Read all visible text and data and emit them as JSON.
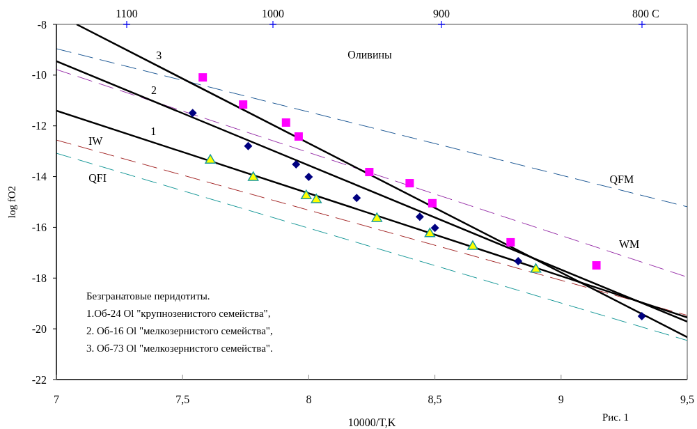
{
  "chart_data": {
    "type": "scatter",
    "xlabel": "10000/T,K",
    "ylabel": "log fO2",
    "xlim": [
      7,
      9.5
    ],
    "xticks": [
      7,
      {
        "value": 7.5,
        "label": "7,5"
      },
      8,
      {
        "value": 8.5,
        "label": "8,5"
      },
      9,
      {
        "value": 9.5,
        "label": "9,5"
      }
    ],
    "ylim": [
      -22,
      -8
    ],
    "yticks": [
      -22,
      -20,
      -18,
      -16,
      -14,
      -12,
      -10,
      -8
    ],
    "grid": false,
    "legend": false,
    "series": [
      {
        "name": "QFM",
        "type": "line",
        "color": "#1f5a96",
        "line_style": "dashed",
        "marker": "none",
        "x": [
          7,
          9.5
        ],
        "values": [
          -8.96,
          -15.19
        ]
      },
      {
        "name": "WM",
        "type": "line",
        "color": "#9933aa",
        "line_style": "dashed",
        "marker": "none",
        "x": [
          7,
          9.5
        ],
        "values": [
          -9.78,
          -17.96
        ]
      },
      {
        "name": "IW",
        "type": "line",
        "color": "#a52a2a",
        "line_style": "dashed",
        "marker": "none",
        "x": [
          7,
          9.5
        ],
        "values": [
          -12.56,
          -19.47
        ]
      },
      {
        "name": "QFI",
        "type": "line",
        "color": "#199999",
        "line_style": "dashed",
        "marker": "none",
        "x": [
          7,
          9.5
        ],
        "values": [
          -13.08,
          -20.46
        ]
      },
      {
        "name": "1",
        "type": "line",
        "color": "#000000",
        "line_style": "solid",
        "marker": "none",
        "x": [
          7,
          9.5
        ],
        "values": [
          -11.4,
          -19.55
        ]
      },
      {
        "name": "2",
        "type": "line",
        "color": "#000000",
        "line_style": "solid",
        "marker": "none",
        "x": [
          7,
          9.5
        ],
        "values": [
          -9.45,
          -19.72
        ]
      },
      {
        "name": "3",
        "type": "line",
        "color": "#000000",
        "line_style": "solid",
        "marker": "none",
        "x": [
          7.08,
          9.5
        ],
        "values": [
          -8,
          -20.33
        ]
      },
      {
        "color": "#ffff00",
        "marker": "triangle",
        "x": [
          7.61,
          7.78,
          7.99,
          8.03,
          8.27,
          8.48,
          8.65,
          8.9
        ],
        "values": [
          -13.33,
          -14.01,
          -14.73,
          -14.89,
          -15.63,
          -16.23,
          -16.73,
          -17.63
        ]
      },
      {
        "color": "#000080",
        "marker": "diamond",
        "x": [
          7.54,
          7.76,
          7.95,
          8.0,
          8.19,
          8.44,
          8.5,
          8.83,
          9.32
        ],
        "values": [
          -11.49,
          -12.8,
          -13.52,
          -14.01,
          -14.84,
          -15.58,
          -16.02,
          -17.33,
          -19.5
        ]
      },
      {
        "color": "#ff00ff",
        "marker": "square",
        "x": [
          7.58,
          7.74,
          7.91,
          7.96,
          8.24,
          8.4,
          8.49,
          8.8,
          9.14
        ],
        "values": [
          -10.09,
          -11.16,
          -11.87,
          -12.42,
          -13.82,
          -14.26,
          -15.05,
          -16.59,
          -17.5
        ]
      }
    ],
    "annotations": [
      "Оливины",
      "Безгранатовые перидотиты.",
      "1.Об-24  Ol \"крупнозенистого семейства\",",
      "2. Об-16 Ol \"мелкозернистого семейства\",",
      "3. Об-73 Ol \"мелкозернистого семейства\".",
      "Рис. 1",
      "1100",
      "1000",
      "900",
      "800 C"
    ]
  }
}
